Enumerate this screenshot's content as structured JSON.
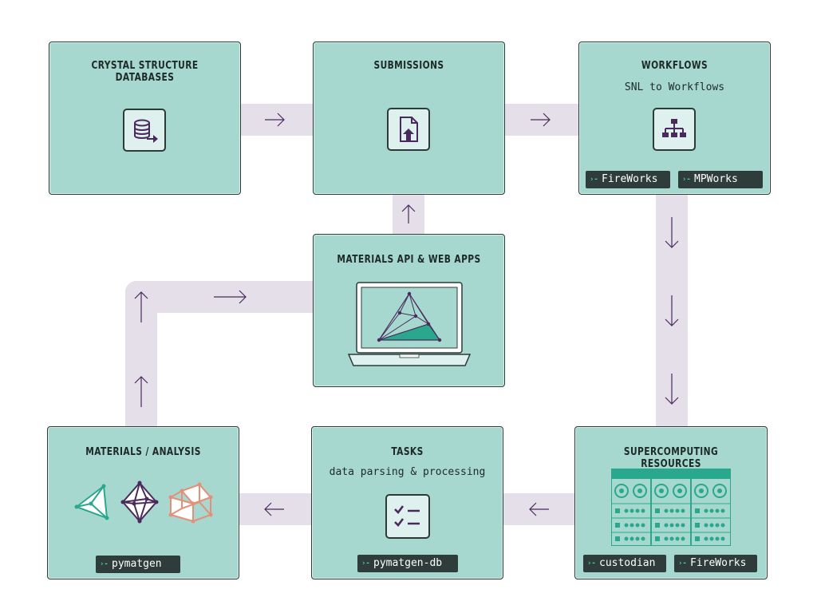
{
  "boxes": {
    "crystal": {
      "title": "CRYSTAL STRUCTURE DATABASES"
    },
    "submissions": {
      "title": "SUBMISSIONS"
    },
    "workflows": {
      "title": "WORKFLOWS",
      "subtitle": "SNL to Workflows",
      "tags": [
        "FireWorks",
        "MPWorks"
      ]
    },
    "api": {
      "title": "MATERIALS API & WEB APPS"
    },
    "supercomputing": {
      "title": "SUPERCOMPUTING RESOURCES",
      "tags": [
        "custodian",
        "FireWorks"
      ]
    },
    "tasks": {
      "title": "TASKS",
      "subtitle": "data parsing & processing",
      "tags": [
        "pymatgen-db"
      ]
    },
    "analysis": {
      "title": "MATERIALS / ANALYSIS",
      "tags": [
        "pymatgen"
      ]
    }
  },
  "tag_prompt": "›-",
  "icons": {
    "crystal": "database-export-icon",
    "submissions": "file-upload-icon",
    "workflows": "org-chart-icon",
    "api": "laptop-phase-diagram-icon",
    "supercomputing": "server-rack-icon",
    "tasks": "checklist-icon",
    "analysis": "crystal-polyhedra-icons"
  },
  "colors": {
    "box_fill": "#a6d8cf",
    "track": "#e4dfe9",
    "tag_bg": "#2e3d3b",
    "tag_prompt": "#4fd3a6",
    "accent_purple": "#4a2a5c",
    "accent_teal": "#2aa88e",
    "accent_salmon": "#e58f7a"
  }
}
